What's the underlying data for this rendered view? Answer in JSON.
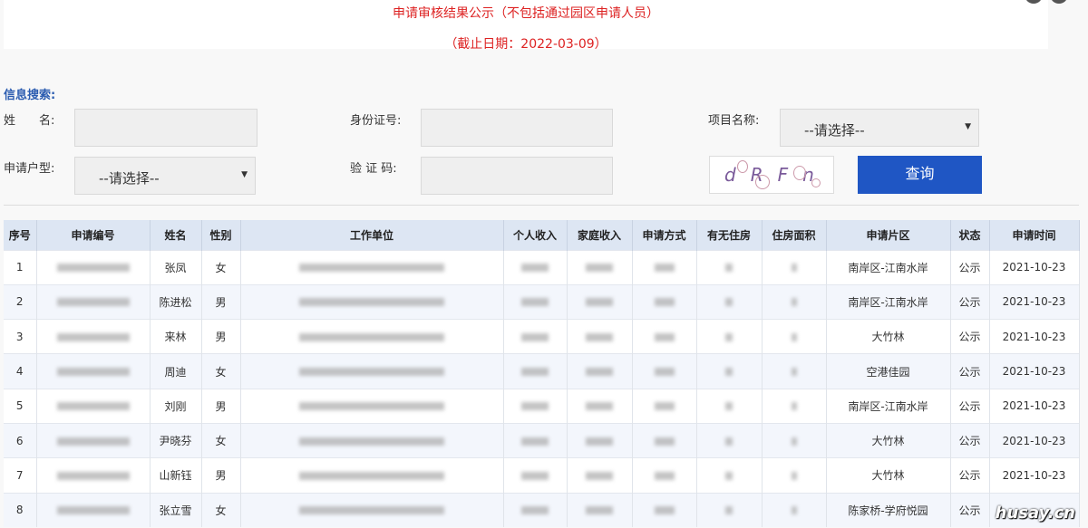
{
  "header": {
    "title": "申请审核结果公示（不包括通过园区申请人员）",
    "date": "（截止日期：2022-03-09）"
  },
  "search": {
    "section_title": "信息搜索:",
    "name_label": "姓　　名:",
    "id_label": "身份证号:",
    "project_label": "项目名称:",
    "project_value": "--请选择--",
    "type_label": "申请户型:",
    "type_value": "--请选择--",
    "captcha_label": "验 证 码:",
    "captcha_text": "dRFn",
    "query_button": "查询"
  },
  "table": {
    "columns": [
      "序号",
      "申请编号",
      "姓名",
      "性别",
      "工作单位",
      "个人收入",
      "家庭收入",
      "申请方式",
      "有无住房",
      "住房面积",
      "申请片区",
      "状态",
      "申请时间"
    ],
    "rows": [
      {
        "no": "1",
        "name": "张凤",
        "gender": "女",
        "district": "南岸区-江南水岸",
        "status": "公示",
        "time": "2021-10-23"
      },
      {
        "no": "2",
        "name": "陈进松",
        "gender": "男",
        "district": "南岸区-江南水岸",
        "status": "公示",
        "time": "2021-10-23"
      },
      {
        "no": "3",
        "name": "来林",
        "gender": "男",
        "district": "大竹林",
        "status": "公示",
        "time": "2021-10-23"
      },
      {
        "no": "4",
        "name": "周迪",
        "gender": "女",
        "district": "空港佳园",
        "status": "公示",
        "time": "2021-10-23"
      },
      {
        "no": "5",
        "name": "刘刚",
        "gender": "男",
        "district": "南岸区-江南水岸",
        "status": "公示",
        "time": "2021-10-23"
      },
      {
        "no": "6",
        "name": "尹晓芬",
        "gender": "女",
        "district": "大竹林",
        "status": "公示",
        "time": "2021-10-23"
      },
      {
        "no": "7",
        "name": "山新钰",
        "gender": "男",
        "district": "大竹林",
        "status": "公示",
        "time": "2021-10-23"
      },
      {
        "no": "8",
        "name": "张立雪",
        "gender": "女",
        "district": "陈家桥-学府悦园",
        "status": "公示",
        "time": ""
      }
    ]
  },
  "watermark": "husay.cn"
}
